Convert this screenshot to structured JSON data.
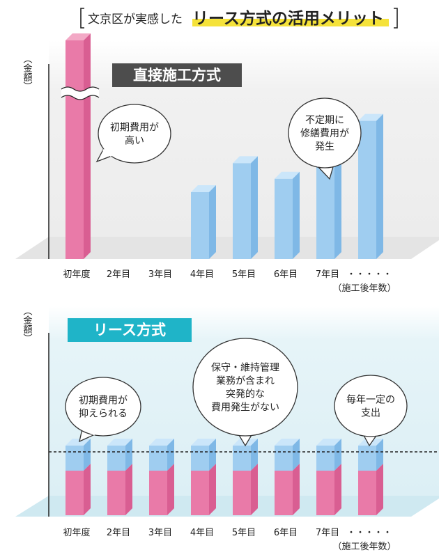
{
  "title": {
    "prefix": "文京区が実感した",
    "highlight": "リース方式の活用メリット",
    "highlight_color": "#f5e23a"
  },
  "colors": {
    "pink": "#e97aa8",
    "pink_top": "#f3a9c6",
    "pink_side": "#d95e92",
    "blue": "#9fcdf0",
    "blue_top": "#cbe6fa",
    "blue_side": "#7fb8e6",
    "banner_dark": "#4d4d4d",
    "banner_teal": "#1fb4c8",
    "panel_teal": "#dff1f6"
  },
  "chart_data": [
    {
      "type": "bar",
      "title": "直接施工方式",
      "ylabel": "（金額）",
      "xlabel": "（施工後年数）",
      "categories": [
        "初年度",
        "2年目",
        "3年目",
        "4年目",
        "5年目",
        "6年目",
        "7年目",
        "・・・・・"
      ],
      "values": [
        null,
        0,
        0,
        30,
        43,
        36,
        50,
        62
      ],
      "break_axis_on_first": true,
      "annotations": [
        {
          "lines": [
            "初期費用が",
            "高い"
          ]
        },
        {
          "lines": [
            "不定期に",
            "修繕費用が",
            "発生"
          ]
        }
      ]
    },
    {
      "type": "bar",
      "title": "リース方式",
      "ylabel": "（金額）",
      "xlabel": "（施工後年数）",
      "categories": [
        "初年度",
        "2年目",
        "3年目",
        "4年目",
        "5年目",
        "6年目",
        "7年目",
        "・・・・・"
      ],
      "stacked": true,
      "values_pink": [
        32,
        32,
        32,
        32,
        32,
        32,
        32,
        32
      ],
      "values_blue": [
        18,
        18,
        18,
        18,
        18,
        18,
        18,
        18
      ],
      "annotations": [
        {
          "lines": [
            "初期費用が",
            "抑えられる"
          ]
        },
        {
          "lines": [
            "保守・維持管理",
            "業務が含まれ",
            "突発的な",
            "費用発生がない"
          ]
        },
        {
          "lines": [
            "毎年一定の",
            "支出"
          ]
        }
      ]
    }
  ]
}
